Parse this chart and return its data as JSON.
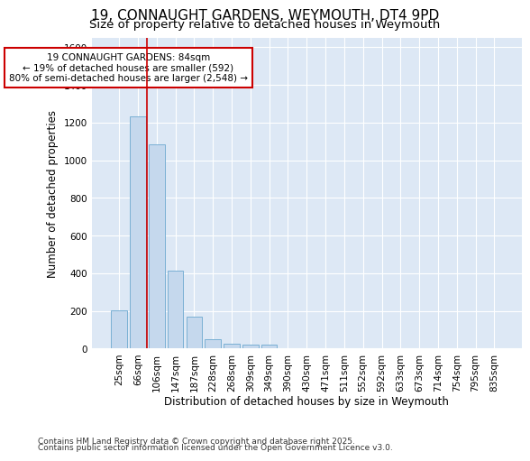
{
  "title": "19, CONNAUGHT GARDENS, WEYMOUTH, DT4 9PD",
  "subtitle": "Size of property relative to detached houses in Weymouth",
  "xlabel": "Distribution of detached houses by size in Weymouth",
  "ylabel": "Number of detached properties",
  "footnote1": "Contains HM Land Registry data © Crown copyright and database right 2025.",
  "footnote2": "Contains public sector information licensed under the Open Government Licence v3.0.",
  "bar_labels": [
    "25sqm",
    "66sqm",
    "106sqm",
    "147sqm",
    "187sqm",
    "228sqm",
    "268sqm",
    "309sqm",
    "349sqm",
    "390sqm",
    "430sqm",
    "471sqm",
    "511sqm",
    "552sqm",
    "592sqm",
    "633sqm",
    "673sqm",
    "714sqm",
    "754sqm",
    "795sqm",
    "835sqm"
  ],
  "bar_values": [
    205,
    1235,
    1085,
    415,
    170,
    50,
    25,
    20,
    20,
    0,
    0,
    0,
    0,
    0,
    0,
    0,
    0,
    0,
    0,
    0,
    0
  ],
  "bar_color": "#c5d8ed",
  "bar_edge_color": "#7ab0d4",
  "vline_x": 1.5,
  "annotation_box_text": "19 CONNAUGHT GARDENS: 84sqm\n← 19% of detached houses are smaller (592)\n80% of semi-detached houses are larger (2,548) →",
  "vline_color": "#cc0000",
  "annotation_box_color": "#cc0000",
  "ylim": [
    0,
    1650
  ],
  "yticks": [
    0,
    200,
    400,
    600,
    800,
    1000,
    1200,
    1400,
    1600
  ],
  "background_color": "#ffffff",
  "axes_bg_color": "#dde8f5",
  "grid_color": "#ffffff",
  "title_fontsize": 11,
  "subtitle_fontsize": 9.5,
  "label_fontsize": 8.5,
  "tick_fontsize": 7.5,
  "annotation_fontsize": 7.5,
  "footnote_fontsize": 6.5
}
